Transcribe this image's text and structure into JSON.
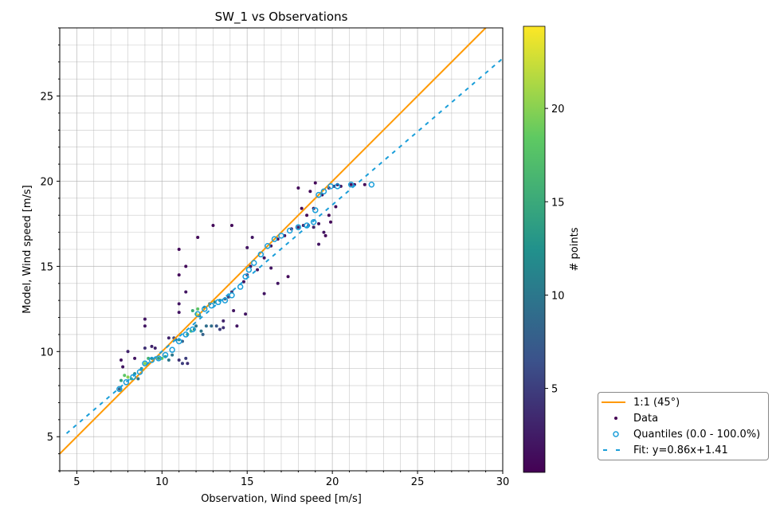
{
  "chart_data": {
    "type": "scatter",
    "title": "SW_1 vs Observations",
    "xlabel": "Observation, Wind speed [m/s]",
    "ylabel": "Model, Wind speed [m/s]",
    "xlim": [
      4,
      30
    ],
    "ylim": [
      3,
      29
    ],
    "xticks": [
      5,
      10,
      15,
      20,
      25,
      30
    ],
    "yticks": [
      5,
      10,
      15,
      20,
      25
    ],
    "grid": true,
    "colorbar": {
      "label": "# points",
      "range": [
        0.5,
        24.4
      ],
      "ticks": [
        5,
        10,
        15,
        20
      ]
    },
    "legend_position": "lower-right-outside",
    "legend": [
      "1:1 (45°)",
      "Data",
      "Quantiles (0.0 - 100.0%)",
      "Fit: y=0.86x+1.41"
    ],
    "one_to_one": {
      "color": "#ff9900"
    },
    "fit": {
      "slope": 0.86,
      "intercept": 1.41,
      "x_start": 4.4,
      "color": "#1a9ed9"
    },
    "data": [
      [
        7.5,
        7.8,
        8
      ],
      [
        7.6,
        8.3,
        14
      ],
      [
        7.8,
        8.6,
        18
      ],
      [
        8,
        8.5,
        20
      ],
      [
        8.2,
        8.4,
        16
      ],
      [
        8.4,
        8.7,
        12
      ],
      [
        8.6,
        8.4,
        10
      ],
      [
        7.7,
        9.1,
        2
      ],
      [
        7.6,
        9.5,
        2
      ],
      [
        8,
        10,
        3
      ],
      [
        8.4,
        9.6,
        2
      ],
      [
        8.8,
        9,
        12
      ],
      [
        9,
        9.3,
        20
      ],
      [
        9.2,
        9.6,
        16
      ],
      [
        9.4,
        9.6,
        12
      ],
      [
        9,
        10.2,
        4
      ],
      [
        9,
        11.5,
        2
      ],
      [
        9,
        11.9,
        2
      ],
      [
        9.4,
        10.3,
        3
      ],
      [
        9.6,
        10.2,
        3
      ],
      [
        9.8,
        9.6,
        14
      ],
      [
        10,
        9.6,
        18
      ],
      [
        10.2,
        9.7,
        14
      ],
      [
        10.4,
        9.5,
        10
      ],
      [
        10.6,
        9.8,
        10
      ],
      [
        10.4,
        10.8,
        3
      ],
      [
        10.8,
        10.7,
        6
      ],
      [
        11,
        10.7,
        12
      ],
      [
        11.2,
        10.6,
        8
      ],
      [
        11,
        9.5,
        4
      ],
      [
        11.2,
        9.3,
        5
      ],
      [
        11.5,
        9.3,
        4
      ],
      [
        11.4,
        9.6,
        5
      ],
      [
        10.7,
        10.8,
        6
      ],
      [
        11,
        12.3,
        2
      ],
      [
        11,
        12.8,
        2
      ],
      [
        11,
        14.5,
        1
      ],
      [
        11,
        16,
        1
      ],
      [
        11.4,
        15,
        1
      ],
      [
        11.4,
        13.5,
        2
      ],
      [
        11.5,
        11,
        14
      ],
      [
        11.7,
        11.2,
        18
      ],
      [
        11.9,
        11.3,
        12
      ],
      [
        12,
        11.5,
        10
      ],
      [
        12,
        12.2,
        22
      ],
      [
        12.1,
        12.5,
        18
      ],
      [
        11.8,
        12.4,
        15
      ],
      [
        12.2,
        12.1,
        12
      ],
      [
        12.3,
        11.2,
        10
      ],
      [
        12.4,
        11,
        8
      ],
      [
        12.6,
        11.5,
        9
      ],
      [
        12.9,
        11.5,
        9
      ],
      [
        13.2,
        11.5,
        7
      ],
      [
        13.4,
        11.3,
        5
      ],
      [
        13.6,
        11.4,
        4
      ],
      [
        12.1,
        16.7,
        1
      ],
      [
        13,
        17.4,
        1
      ],
      [
        14.1,
        17.4,
        1
      ],
      [
        12.5,
        12.6,
        10
      ],
      [
        12.8,
        12.8,
        10
      ],
      [
        13.1,
        12.9,
        12
      ],
      [
        13.4,
        13,
        12
      ],
      [
        13.7,
        13.1,
        8
      ],
      [
        13.9,
        13.2,
        6
      ],
      [
        14.1,
        13.5,
        5
      ],
      [
        13.6,
        11.8,
        3
      ],
      [
        14.2,
        12.4,
        2
      ],
      [
        14.4,
        11.5,
        2
      ],
      [
        14.8,
        14.1,
        2
      ],
      [
        15,
        14.5,
        4
      ],
      [
        15.2,
        15,
        2
      ],
      [
        14.9,
        12.2,
        2
      ],
      [
        15,
        16.1,
        2
      ],
      [
        15.3,
        16.7,
        2
      ],
      [
        15.6,
        14.8,
        2
      ],
      [
        16,
        15.5,
        2
      ],
      [
        16.4,
        14.9,
        2
      ],
      [
        16.8,
        14,
        2
      ],
      [
        16,
        13.4,
        2
      ],
      [
        17.4,
        14.4,
        1
      ],
      [
        16.4,
        16.2,
        2
      ],
      [
        16.8,
        16.6,
        2
      ],
      [
        17.2,
        16.8,
        2
      ],
      [
        17.6,
        17.2,
        2
      ],
      [
        18,
        17.3,
        3
      ],
      [
        18.3,
        17.4,
        3
      ],
      [
        18.6,
        17.4,
        3
      ],
      [
        18.9,
        17.3,
        3
      ],
      [
        19.2,
        17.5,
        2
      ],
      [
        19.5,
        17,
        2
      ],
      [
        19.6,
        16.8,
        1
      ],
      [
        19.2,
        16.3,
        2
      ],
      [
        19.9,
        17.6,
        1
      ],
      [
        18.2,
        18.4,
        1
      ],
      [
        18.5,
        18,
        1
      ],
      [
        18.7,
        19.4,
        1
      ],
      [
        19,
        19.9,
        1
      ],
      [
        18,
        19.6,
        1
      ],
      [
        18.9,
        18.4,
        1
      ],
      [
        19.4,
        19.2,
        2
      ],
      [
        19.8,
        19.6,
        3
      ],
      [
        20.1,
        19.7,
        3
      ],
      [
        20.3,
        19.8,
        2
      ],
      [
        20.5,
        19.7,
        2
      ],
      [
        21.1,
        19.8,
        2
      ],
      [
        21.3,
        19.8,
        1
      ],
      [
        21.9,
        19.8,
        1
      ],
      [
        20.2,
        18.5,
        1
      ],
      [
        19.8,
        18,
        1
      ]
    ],
    "quantiles": [
      [
        7.5,
        7.8
      ],
      [
        7.9,
        8.2
      ],
      [
        8.3,
        8.5
      ],
      [
        8.7,
        8.8
      ],
      [
        9,
        9.3
      ],
      [
        9.4,
        9.5
      ],
      [
        9.8,
        9.6
      ],
      [
        10.2,
        9.8
      ],
      [
        10.6,
        10.1
      ],
      [
        11,
        10.6
      ],
      [
        11.4,
        11
      ],
      [
        11.8,
        11.3
      ],
      [
        12.1,
        12.2
      ],
      [
        12.5,
        12.5
      ],
      [
        12.9,
        12.7
      ],
      [
        13.3,
        12.9
      ],
      [
        13.7,
        13
      ],
      [
        14.1,
        13.3
      ],
      [
        14.6,
        13.8
      ],
      [
        14.9,
        14.4
      ],
      [
        15.1,
        14.8
      ],
      [
        15.4,
        15.2
      ],
      [
        15.8,
        15.7
      ],
      [
        16.2,
        16.2
      ],
      [
        16.6,
        16.6
      ],
      [
        17,
        16.8
      ],
      [
        17.5,
        17.1
      ],
      [
        18,
        17.3
      ],
      [
        18.5,
        17.4
      ],
      [
        18.9,
        17.6
      ],
      [
        19,
        18.3
      ],
      [
        19.2,
        19.2
      ],
      [
        19.5,
        19.4
      ],
      [
        19.9,
        19.7
      ],
      [
        20.3,
        19.7
      ],
      [
        21.1,
        19.8
      ],
      [
        22.3,
        19.8
      ]
    ],
    "colors": {
      "quantile": "#1a9ed9"
    }
  }
}
